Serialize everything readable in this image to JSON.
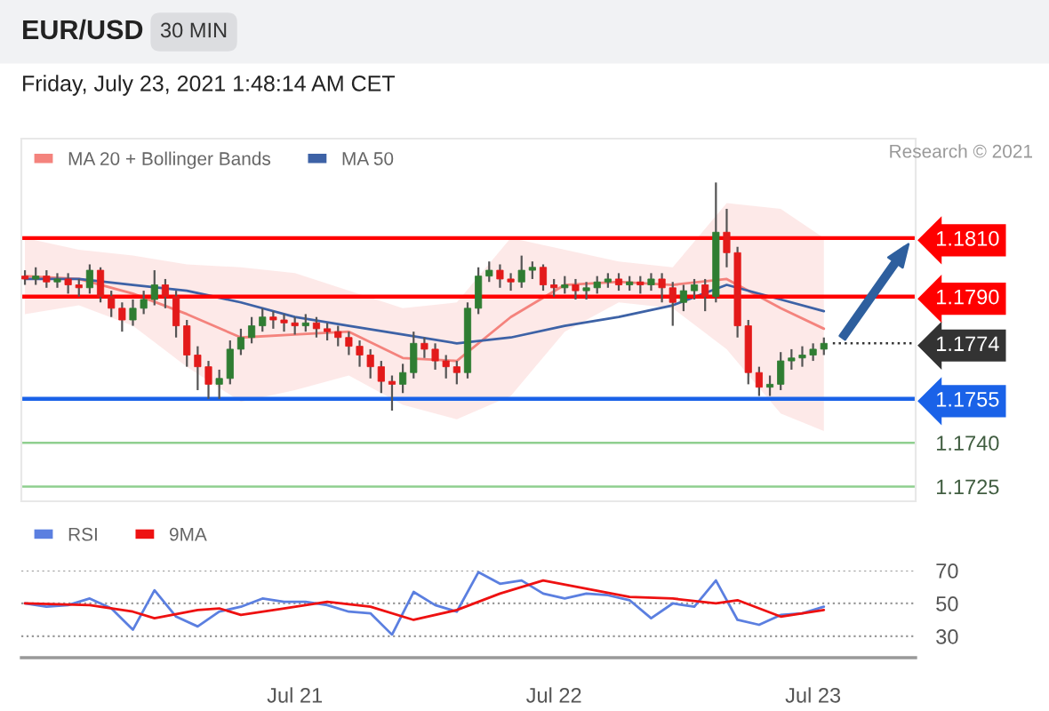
{
  "chart_data": [
    {
      "type": "candlestick",
      "title": "EUR/USD",
      "subtitle": "30 MIN",
      "annotations": [
        "Friday, July 23, 2021 1:48:14 AM CET",
        "Research © 2021"
      ],
      "x": [
        "2021-07-19T23:00",
        "2021-07-20T00:00",
        "2021-07-20T01:00",
        "2021-07-20T02:00",
        "2021-07-20T03:00",
        "2021-07-20T04:00",
        "2021-07-20T05:00",
        "2021-07-20T06:00",
        "2021-07-20T07:00",
        "2021-07-20T08:00",
        "2021-07-20T09:00",
        "2021-07-20T10:00",
        "2021-07-20T11:00",
        "2021-07-20T12:00",
        "2021-07-20T13:00",
        "2021-07-20T14:00",
        "2021-07-20T15:00",
        "2021-07-20T16:00",
        "2021-07-20T17:00",
        "2021-07-20T18:00",
        "2021-07-20T19:00",
        "2021-07-20T20:00",
        "2021-07-20T21:00",
        "2021-07-20T22:00",
        "2021-07-20T23:00",
        "2021-07-21T00:00",
        "2021-07-21T01:00",
        "2021-07-21T02:00",
        "2021-07-21T03:00",
        "2021-07-21T04:00",
        "2021-07-21T05:00",
        "2021-07-21T06:00",
        "2021-07-21T07:00",
        "2021-07-21T08:00",
        "2021-07-21T09:00",
        "2021-07-21T10:00",
        "2021-07-21T11:00",
        "2021-07-21T12:00",
        "2021-07-21T13:00",
        "2021-07-21T14:00",
        "2021-07-21T15:00",
        "2021-07-21T16:00",
        "2021-07-21T17:00",
        "2021-07-21T18:00",
        "2021-07-21T19:00",
        "2021-07-21T20:00",
        "2021-07-21T21:00",
        "2021-07-21T22:00",
        "2021-07-21T23:00",
        "2021-07-22T00:00",
        "2021-07-22T01:00",
        "2021-07-22T02:00",
        "2021-07-22T03:00",
        "2021-07-22T04:00",
        "2021-07-22T05:00",
        "2021-07-22T06:00",
        "2021-07-22T07:00",
        "2021-07-22T08:00",
        "2021-07-22T09:00",
        "2021-07-22T10:00",
        "2021-07-22T11:00",
        "2021-07-22T12:00",
        "2021-07-22T13:00",
        "2021-07-22T14:00",
        "2021-07-22T15:00",
        "2021-07-22T16:00",
        "2021-07-22T17:00",
        "2021-07-22T18:00",
        "2021-07-22T19:00",
        "2021-07-22T20:00",
        "2021-07-22T21:00",
        "2021-07-22T22:00",
        "2021-07-22T23:00",
        "2021-07-23T00:00",
        "2021-07-23T01:00"
      ],
      "ohlc": [
        [
          1.1797,
          1.1799,
          1.1794,
          1.1796
        ],
        [
          1.1796,
          1.18,
          1.1794,
          1.1797
        ],
        [
          1.1797,
          1.1799,
          1.1793,
          1.1795
        ],
        [
          1.1795,
          1.1798,
          1.1793,
          1.1796
        ],
        [
          1.1796,
          1.1798,
          1.1791,
          1.1794
        ],
        [
          1.1794,
          1.1796,
          1.179,
          1.1793
        ],
        [
          1.1793,
          1.1801,
          1.1791,
          1.1799
        ],
        [
          1.1799,
          1.18,
          1.1788,
          1.179
        ],
        [
          1.179,
          1.1792,
          1.1783,
          1.1786
        ],
        [
          1.1786,
          1.1788,
          1.1778,
          1.1782
        ],
        [
          1.1782,
          1.1789,
          1.178,
          1.1786
        ],
        [
          1.1786,
          1.1792,
          1.1784,
          1.1789
        ],
        [
          1.1789,
          1.1799,
          1.1787,
          1.1794
        ],
        [
          1.1794,
          1.1796,
          1.1786,
          1.179
        ],
        [
          1.179,
          1.1792,
          1.1776,
          1.178
        ],
        [
          1.178,
          1.1782,
          1.1766,
          1.177
        ],
        [
          1.177,
          1.1773,
          1.1758,
          1.1766
        ],
        [
          1.1766,
          1.1768,
          1.1755,
          1.176
        ],
        [
          1.176,
          1.1765,
          1.1755,
          1.1762
        ],
        [
          1.1762,
          1.1775,
          1.176,
          1.1772
        ],
        [
          1.1772,
          1.1779,
          1.177,
          1.1776
        ],
        [
          1.1776,
          1.1783,
          1.1774,
          1.178
        ],
        [
          1.178,
          1.1786,
          1.1778,
          1.1783
        ],
        [
          1.1783,
          1.1785,
          1.1779,
          1.1782
        ],
        [
          1.1782,
          1.1784,
          1.1778,
          1.1781
        ],
        [
          1.1781,
          1.1783,
          1.1777,
          1.178
        ],
        [
          1.178,
          1.1784,
          1.1778,
          1.1781
        ],
        [
          1.1781,
          1.1783,
          1.1776,
          1.1779
        ],
        [
          1.1779,
          1.1781,
          1.1775,
          1.1778
        ],
        [
          1.1778,
          1.178,
          1.1773,
          1.1776
        ],
        [
          1.1776,
          1.1778,
          1.177,
          1.1773
        ],
        [
          1.1773,
          1.1775,
          1.1766,
          1.177
        ],
        [
          1.177,
          1.1772,
          1.1762,
          1.1766
        ],
        [
          1.1766,
          1.1768,
          1.1757,
          1.1761
        ],
        [
          1.1761,
          1.1763,
          1.1751,
          1.176
        ],
        [
          1.176,
          1.1767,
          1.1757,
          1.1764
        ],
        [
          1.1764,
          1.1778,
          1.1762,
          1.1774
        ],
        [
          1.1774,
          1.1776,
          1.1769,
          1.1772
        ],
        [
          1.1772,
          1.1774,
          1.1765,
          1.1768
        ],
        [
          1.1768,
          1.177,
          1.1762,
          1.1766
        ],
        [
          1.1766,
          1.1768,
          1.176,
          1.1764
        ],
        [
          1.1764,
          1.1788,
          1.1762,
          1.1786
        ],
        [
          1.1786,
          1.18,
          1.1784,
          1.1797
        ],
        [
          1.1797,
          1.1802,
          1.1795,
          1.1799
        ],
        [
          1.1799,
          1.1801,
          1.1793,
          1.1796
        ],
        [
          1.1796,
          1.1798,
          1.1792,
          1.1795
        ],
        [
          1.1795,
          1.1804,
          1.1793,
          1.1799
        ],
        [
          1.1799,
          1.1802,
          1.1796,
          1.18
        ],
        [
          1.18,
          1.1801,
          1.1792,
          1.1794
        ],
        [
          1.1794,
          1.1796,
          1.179,
          1.1793
        ],
        [
          1.1793,
          1.1797,
          1.1791,
          1.1794
        ],
        [
          1.1794,
          1.1796,
          1.1789,
          1.1792
        ],
        [
          1.1792,
          1.1795,
          1.1789,
          1.1793
        ],
        [
          1.1793,
          1.1797,
          1.1791,
          1.1795
        ],
        [
          1.1795,
          1.1798,
          1.1793,
          1.1796
        ],
        [
          1.1796,
          1.1798,
          1.1792,
          1.1794
        ],
        [
          1.1794,
          1.1797,
          1.1792,
          1.1795
        ],
        [
          1.1795,
          1.1797,
          1.1791,
          1.1794
        ],
        [
          1.1794,
          1.1798,
          1.1792,
          1.1796
        ],
        [
          1.1796,
          1.1798,
          1.1788,
          1.1793
        ],
        [
          1.1793,
          1.1795,
          1.178,
          1.1788
        ],
        [
          1.1788,
          1.1794,
          1.1785,
          1.1792
        ],
        [
          1.1792,
          1.1796,
          1.1789,
          1.1794
        ],
        [
          1.1794,
          1.1796,
          1.1785,
          1.179
        ],
        [
          1.179,
          1.1829,
          1.1788,
          1.1812
        ],
        [
          1.1812,
          1.182,
          1.18,
          1.1805
        ],
        [
          1.1805,
          1.1807,
          1.1776,
          1.178
        ],
        [
          1.178,
          1.1782,
          1.176,
          1.1764
        ],
        [
          1.1764,
          1.1766,
          1.1756,
          1.1759
        ],
        [
          1.1759,
          1.1763,
          1.1756,
          1.176
        ],
        [
          1.176,
          1.1771,
          1.1758,
          1.1768
        ],
        [
          1.1768,
          1.1772,
          1.1765,
          1.1769
        ],
        [
          1.1769,
          1.1773,
          1.1766,
          1.177
        ],
        [
          1.177,
          1.1774,
          1.1768,
          1.1772
        ],
        [
          1.1772,
          1.1776,
          1.177,
          1.1774
        ]
      ],
      "series": [
        {
          "name": "MA 20 + Bollinger Bands",
          "type": "line",
          "color": "#f4837d",
          "x": [
            "2021-07-19T23:00",
            "2021-07-20T04:00",
            "2021-07-20T09:00",
            "2021-07-20T14:00",
            "2021-07-20T19:00",
            "2021-07-21T00:00",
            "2021-07-21T05:00",
            "2021-07-21T10:00",
            "2021-07-21T15:00",
            "2021-07-21T20:00",
            "2021-07-22T01:00",
            "2021-07-22T06:00",
            "2021-07-22T11:00",
            "2021-07-22T16:00",
            "2021-07-22T21:00",
            "2021-07-23T01:00"
          ],
          "values": [
            1.1797,
            1.1796,
            1.1791,
            1.1784,
            1.1776,
            1.1777,
            1.1778,
            1.1769,
            1.1768,
            1.1783,
            1.1794,
            1.1795,
            1.1794,
            1.1796,
            1.1786,
            1.1779
          ],
          "upper": [
            1.181,
            1.1806,
            1.1804,
            1.1801,
            1.18,
            1.1798,
            1.1792,
            1.1786,
            1.1788,
            1.181,
            1.1806,
            1.1802,
            1.18,
            1.1822,
            1.182,
            1.181
          ],
          "lower": [
            1.1784,
            1.1787,
            1.178,
            1.1766,
            1.1754,
            1.1758,
            1.1763,
            1.1753,
            1.1748,
            1.1756,
            1.1778,
            1.1788,
            1.1786,
            1.1772,
            1.175,
            1.1744
          ]
        },
        {
          "name": "MA 50",
          "type": "line",
          "color": "#3d62a6",
          "x": [
            "2021-07-19T23:00",
            "2021-07-20T04:00",
            "2021-07-20T09:00",
            "2021-07-20T14:00",
            "2021-07-20T19:00",
            "2021-07-21T00:00",
            "2021-07-21T05:00",
            "2021-07-21T10:00",
            "2021-07-21T15:00",
            "2021-07-21T20:00",
            "2021-07-22T01:00",
            "2021-07-22T06:00",
            "2021-07-22T11:00",
            "2021-07-22T16:00",
            "2021-07-22T21:00",
            "2021-07-23T01:00"
          ],
          "values": [
            1.1796,
            1.1796,
            1.1794,
            1.1792,
            1.1788,
            1.1783,
            1.178,
            1.1777,
            1.1774,
            1.1776,
            1.178,
            1.1783,
            1.1787,
            1.1794,
            1.1789,
            1.1785
          ]
        }
      ],
      "ref_lines": [
        {
          "axis": "y",
          "value": 1.181,
          "color": "#ff0000",
          "line_style": "solid"
        },
        {
          "axis": "y",
          "value": 1.179,
          "color": "#ff0000",
          "line_style": "solid"
        },
        {
          "axis": "y",
          "value": 1.1774,
          "color": "#333333",
          "line_style": "dotted"
        },
        {
          "axis": "y",
          "value": 1.1755,
          "color": "#1a62e8",
          "line_style": "solid"
        },
        {
          "axis": "y",
          "value": 1.174,
          "color": "#8fcf8f",
          "line_style": "solid"
        },
        {
          "axis": "y",
          "value": 1.1725,
          "color": "#8fcf8f",
          "line_style": "solid"
        }
      ],
      "xlim": [
        "2021-07-19T22:40",
        "2021-07-23T09:30"
      ],
      "ylim": [
        1.172,
        1.1844
      ],
      "yticks": [
        {
          "value": 1.1725,
          "label": "1.1725"
        },
        {
          "value": 1.174,
          "label": "1.1740"
        },
        {
          "value": 1.1755,
          "label": "1.1755"
        },
        {
          "value": 1.1774,
          "label": "1.1774"
        },
        {
          "value": 1.179,
          "label": "1.1790"
        },
        {
          "value": 1.181,
          "label": "1.1810"
        }
      ],
      "grid": false,
      "legend": "top left"
    },
    {
      "type": "line",
      "series": [
        {
          "name": "RSI",
          "color": "#5b7fe0",
          "x": [
            "2021-07-19T23:00",
            "2021-07-20T01:00",
            "2021-07-20T03:00",
            "2021-07-20T05:00",
            "2021-07-20T07:00",
            "2021-07-20T09:00",
            "2021-07-20T11:00",
            "2021-07-20T13:00",
            "2021-07-20T15:00",
            "2021-07-20T17:00",
            "2021-07-20T19:00",
            "2021-07-20T21:00",
            "2021-07-20T23:00",
            "2021-07-21T01:00",
            "2021-07-21T03:00",
            "2021-07-21T05:00",
            "2021-07-21T07:00",
            "2021-07-21T09:00",
            "2021-07-21T11:00",
            "2021-07-21T13:00",
            "2021-07-21T15:00",
            "2021-07-21T17:00",
            "2021-07-21T19:00",
            "2021-07-21T21:00",
            "2021-07-21T23:00",
            "2021-07-22T01:00",
            "2021-07-22T03:00",
            "2021-07-22T05:00",
            "2021-07-22T07:00",
            "2021-07-22T09:00",
            "2021-07-22T11:00",
            "2021-07-22T13:00",
            "2021-07-22T15:00",
            "2021-07-22T17:00",
            "2021-07-22T19:00",
            "2021-07-22T21:00",
            "2021-07-22T23:00",
            "2021-07-23T01:00"
          ],
          "values": [
            50,
            48,
            49,
            53,
            47,
            34,
            58,
            42,
            36,
            45,
            48,
            53,
            51,
            51,
            49,
            45,
            44,
            31,
            57,
            49,
            45,
            69,
            62,
            64,
            56,
            53,
            56,
            55,
            52,
            41,
            50,
            48,
            64,
            40,
            37,
            43,
            44,
            48
          ]
        },
        {
          "name": "9MA",
          "color": "#ee1111",
          "x": [
            "2021-07-19T23:00",
            "2021-07-20T05:00",
            "2021-07-20T09:00",
            "2021-07-20T11:00",
            "2021-07-20T15:00",
            "2021-07-20T17:00",
            "2021-07-20T19:00",
            "2021-07-20T23:00",
            "2021-07-21T03:00",
            "2021-07-21T07:00",
            "2021-07-21T11:00",
            "2021-07-21T15:00",
            "2021-07-21T19:00",
            "2021-07-21T23:00",
            "2021-07-22T03:00",
            "2021-07-22T07:00",
            "2021-07-22T11:00",
            "2021-07-22T15:00",
            "2021-07-22T17:00",
            "2021-07-22T21:00",
            "2021-07-23T01:00"
          ],
          "values": [
            50,
            49,
            45,
            41,
            46,
            47,
            43,
            47,
            51,
            48,
            40,
            46,
            56,
            64,
            59,
            54,
            53,
            50,
            52,
            42,
            46
          ]
        }
      ],
      "xlim": [
        "2021-07-19T22:40",
        "2021-07-23T09:30"
      ],
      "xticks": [
        {
          "value": "2021-07-21T00:00",
          "label": "Jul 21"
        },
        {
          "value": "2021-07-22T00:00",
          "label": "Jul 22"
        },
        {
          "value": "2021-07-23T00:00",
          "label": "Jul 23"
        }
      ],
      "ylim": [
        17,
        70
      ],
      "yticks": [
        30,
        50,
        70
      ],
      "grid": "y",
      "legend": "top left"
    }
  ]
}
